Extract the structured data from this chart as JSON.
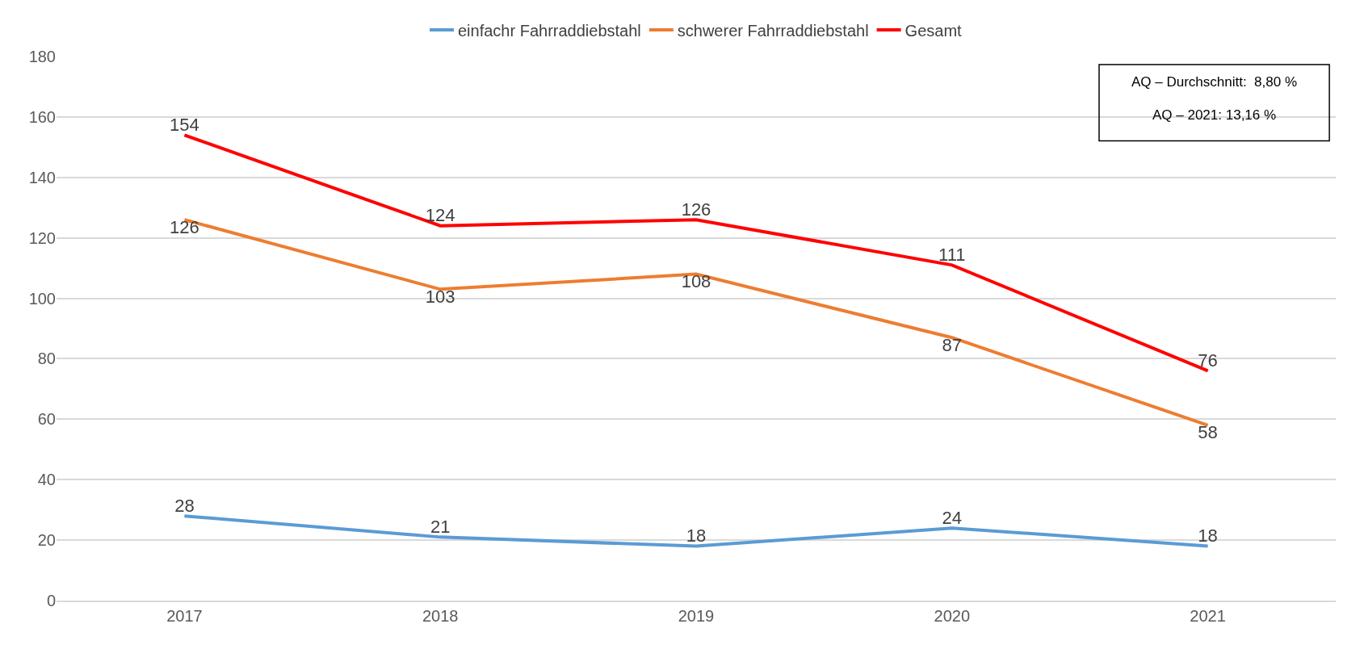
{
  "chart_data": {
    "type": "line",
    "categories": [
      "2017",
      "2018",
      "2019",
      "2020",
      "2021"
    ],
    "series": [
      {
        "name": "einfachr Fahrraddiebstahl",
        "color": "#5b9bd5",
        "values": [
          28,
          21,
          18,
          24,
          18
        ]
      },
      {
        "name": "schwerer Fahrraddiebstahl",
        "color": "#ed7d31",
        "values": [
          126,
          103,
          108,
          87,
          58
        ]
      },
      {
        "name": "Gesamt",
        "color": "#ff0000",
        "values": [
          154,
          124,
          126,
          111,
          76
        ]
      }
    ],
    "ylim": [
      0,
      180
    ],
    "yticks": [
      0,
      20,
      40,
      60,
      80,
      100,
      120,
      140,
      160,
      180
    ],
    "grid": "y",
    "legend": "top",
    "data_labels": true,
    "line_style": "solid",
    "annotations": [
      "AQ – Durchschnitt:  8,80 %",
      "AQ – 2021: 13,16 %"
    ]
  }
}
